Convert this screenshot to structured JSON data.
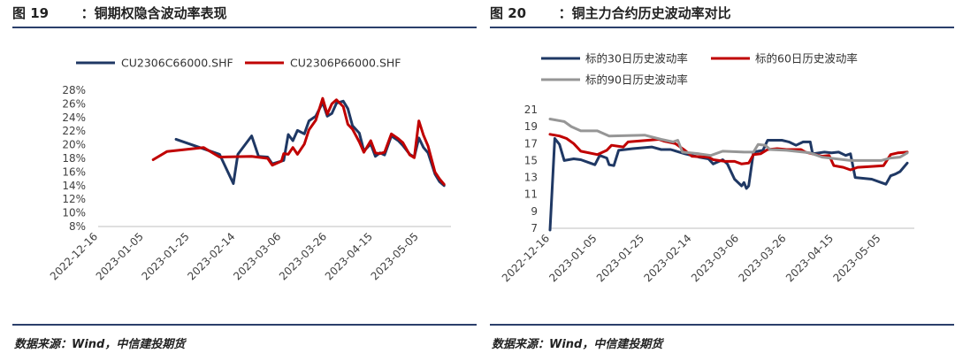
{
  "figures": [
    {
      "title": "图 19       ：铜期权隐含波动率表现",
      "source": "数据来源：Wind，中信建投期货",
      "chart_data": {
        "type": "line",
        "title": "",
        "xlabel": "",
        "ylabel": "",
        "x_start": "2022-12-16",
        "x_end": "2023-05-19",
        "x_ticks": [
          "2022-12-16",
          "2023-01-05",
          "2023-01-25",
          "2023-02-14",
          "2023-03-06",
          "2023-03-26",
          "2023-04-15",
          "2023-05-05"
        ],
        "ylim": [
          8,
          28
        ],
        "y_step": 2,
        "y_format": "percent",
        "grid": false,
        "legend": "top",
        "series": [
          {
            "name": "CU2306C66000.SHF",
            "color": "#1f3864",
            "points": [
              [
                "2023-01-19",
                20.8
              ],
              [
                "2023-02-07",
                18.6
              ],
              [
                "2023-02-13",
                14.3
              ],
              [
                "2023-02-15",
                18.6
              ],
              [
                "2023-02-21",
                21.3
              ],
              [
                "2023-02-24",
                18.3
              ],
              [
                "2023-02-28",
                18.2
              ],
              [
                "2023-03-02",
                17.2
              ],
              [
                "2023-03-06",
                17.6
              ],
              [
                "2023-03-07",
                17.7
              ],
              [
                "2023-03-09",
                21.5
              ],
              [
                "2023-03-11",
                20.6
              ],
              [
                "2023-03-13",
                22.1
              ],
              [
                "2023-03-16",
                21.6
              ],
              [
                "2023-03-18",
                23.5
              ],
              [
                "2023-03-21",
                24.2
              ],
              [
                "2023-03-24",
                26.2
              ],
              [
                "2023-03-26",
                24.2
              ],
              [
                "2023-03-28",
                24.6
              ],
              [
                "2023-03-30",
                26.1
              ],
              [
                "2023-04-02",
                26.4
              ],
              [
                "2023-04-04",
                25.3
              ],
              [
                "2023-04-06",
                22.8
              ],
              [
                "2023-04-09",
                21.7
              ],
              [
                "2023-04-11",
                19.1
              ],
              [
                "2023-04-14",
                20.1
              ],
              [
                "2023-04-16",
                18.3
              ],
              [
                "2023-04-18",
                18.8
              ],
              [
                "2023-04-20",
                18.5
              ],
              [
                "2023-04-23",
                21.3
              ],
              [
                "2023-04-26",
                20.6
              ],
              [
                "2023-04-28",
                19.9
              ],
              [
                "2023-05-01",
                18.6
              ],
              [
                "2023-05-03",
                18.2
              ],
              [
                "2023-05-05",
                21.0
              ],
              [
                "2023-05-07",
                19.6
              ],
              [
                "2023-05-09",
                18.8
              ],
              [
                "2023-05-12",
                15.7
              ],
              [
                "2023-05-14",
                14.6
              ],
              [
                "2023-05-16",
                14.0
              ]
            ]
          },
          {
            "name": "CU2306P66000.SHF",
            "color": "#c00000",
            "points": [
              [
                "2023-01-09",
                17.8
              ],
              [
                "2023-01-15",
                19.0
              ],
              [
                "2023-01-31",
                19.6
              ],
              [
                "2023-02-07",
                18.2
              ],
              [
                "2023-02-21",
                18.3
              ],
              [
                "2023-02-28",
                18.0
              ],
              [
                "2023-03-02",
                17.0
              ],
              [
                "2023-03-06",
                17.6
              ],
              [
                "2023-03-07",
                18.7
              ],
              [
                "2023-03-09",
                18.6
              ],
              [
                "2023-03-11",
                19.6
              ],
              [
                "2023-03-13",
                18.6
              ],
              [
                "2023-03-16",
                20.1
              ],
              [
                "2023-03-18",
                22.2
              ],
              [
                "2023-03-21",
                23.6
              ],
              [
                "2023-03-24",
                26.8
              ],
              [
                "2023-03-26",
                24.5
              ],
              [
                "2023-03-28",
                26.0
              ],
              [
                "2023-03-30",
                26.6
              ],
              [
                "2023-04-02",
                25.6
              ],
              [
                "2023-04-04",
                23.0
              ],
              [
                "2023-04-06",
                22.3
              ],
              [
                "2023-04-09",
                20.4
              ],
              [
                "2023-04-11",
                18.9
              ],
              [
                "2023-04-14",
                20.6
              ],
              [
                "2023-04-16",
                18.8
              ],
              [
                "2023-04-18",
                18.7
              ],
              [
                "2023-04-20",
                18.9
              ],
              [
                "2023-04-23",
                21.6
              ],
              [
                "2023-04-26",
                20.9
              ],
              [
                "2023-04-28",
                20.3
              ],
              [
                "2023-05-01",
                18.5
              ],
              [
                "2023-05-03",
                18.1
              ],
              [
                "2023-05-05",
                23.5
              ],
              [
                "2023-05-07",
                21.4
              ],
              [
                "2023-05-09",
                19.8
              ],
              [
                "2023-05-12",
                16.0
              ],
              [
                "2023-05-14",
                15.0
              ],
              [
                "2023-05-16",
                14.2
              ]
            ]
          }
        ]
      }
    },
    {
      "title": "图 20       ：铜主力合约历史波动率对比",
      "source": "数据来源：Wind，中信建投期货",
      "chart_data": {
        "type": "line",
        "title": "",
        "xlabel": "",
        "ylabel": "",
        "x_start": "2022-12-16",
        "x_end": "2023-05-19",
        "x_ticks": [
          "2022-12-16",
          "2023-01-05",
          "2023-01-25",
          "2023-02-14",
          "2023-03-06",
          "2023-03-26",
          "2023-04-15",
          "2023-05-05"
        ],
        "ylim": [
          7,
          21
        ],
        "y_step": 2,
        "y_format": "number",
        "grid": false,
        "legend": "top",
        "series": [
          {
            "name": "标的30日历史波动率",
            "color": "#1f3864",
            "points": [
              [
                "2022-12-16",
                6.8
              ],
              [
                "2022-12-18",
                17.6
              ],
              [
                "2022-12-20",
                16.9
              ],
              [
                "2022-12-22",
                15.0
              ],
              [
                "2022-12-26",
                15.2
              ],
              [
                "2022-12-29",
                15.1
              ],
              [
                "2023-01-02",
                14.7
              ],
              [
                "2023-01-04",
                14.5
              ],
              [
                "2023-01-06",
                15.6
              ],
              [
                "2023-01-09",
                15.3
              ],
              [
                "2023-01-10",
                14.5
              ],
              [
                "2023-01-12",
                14.4
              ],
              [
                "2023-01-14",
                16.2
              ],
              [
                "2023-01-20",
                16.4
              ],
              [
                "2023-01-28",
                16.6
              ],
              [
                "2023-02-01",
                16.3
              ],
              [
                "2023-02-05",
                16.3
              ],
              [
                "2023-02-11",
                15.8
              ],
              [
                "2023-02-17",
                15.4
              ],
              [
                "2023-02-21",
                15.2
              ],
              [
                "2023-02-23",
                14.6
              ],
              [
                "2023-02-27",
                15.1
              ],
              [
                "2023-03-01",
                14.6
              ],
              [
                "2023-03-04",
                12.8
              ],
              [
                "2023-03-07",
                12.0
              ],
              [
                "2023-03-08",
                12.4
              ],
              [
                "2023-03-09",
                11.7
              ],
              [
                "2023-03-10",
                12.0
              ],
              [
                "2023-03-12",
                16.0
              ],
              [
                "2023-03-16",
                16.2
              ],
              [
                "2023-03-18",
                17.4
              ],
              [
                "2023-03-24",
                17.4
              ],
              [
                "2023-03-27",
                17.2
              ],
              [
                "2023-03-30",
                16.8
              ],
              [
                "2023-04-02",
                17.2
              ],
              [
                "2023-04-05",
                17.2
              ],
              [
                "2023-04-06",
                15.8
              ],
              [
                "2023-04-11",
                16.0
              ],
              [
                "2023-04-14",
                15.9
              ],
              [
                "2023-04-17",
                16.0
              ],
              [
                "2023-04-20",
                15.6
              ],
              [
                "2023-04-22",
                15.8
              ],
              [
                "2023-04-24",
                13.0
              ],
              [
                "2023-05-01",
                12.8
              ],
              [
                "2023-05-05",
                12.4
              ],
              [
                "2023-05-07",
                12.2
              ],
              [
                "2023-05-09",
                13.2
              ],
              [
                "2023-05-11",
                13.4
              ],
              [
                "2023-05-13",
                13.7
              ],
              [
                "2023-05-16",
                14.7
              ]
            ]
          },
          {
            "name": "标的60日历史波动率",
            "color": "#c00000",
            "points": [
              [
                "2022-12-16",
                18.1
              ],
              [
                "2022-12-20",
                17.9
              ],
              [
                "2022-12-23",
                17.6
              ],
              [
                "2022-12-26",
                17.0
              ],
              [
                "2022-12-29",
                16.1
              ],
              [
                "2023-01-05",
                15.7
              ],
              [
                "2023-01-09",
                16.2
              ],
              [
                "2023-01-11",
                16.8
              ],
              [
                "2023-01-16",
                16.6
              ],
              [
                "2023-01-18",
                17.2
              ],
              [
                "2023-01-31",
                17.5
              ],
              [
                "2023-02-02",
                17.3
              ],
              [
                "2023-02-07",
                17.0
              ],
              [
                "2023-02-11",
                16.2
              ],
              [
                "2023-02-14",
                15.5
              ],
              [
                "2023-02-21",
                15.4
              ],
              [
                "2023-02-23",
                15.1
              ],
              [
                "2023-02-28",
                14.9
              ],
              [
                "2023-03-04",
                14.9
              ],
              [
                "2023-03-07",
                14.6
              ],
              [
                "2023-03-10",
                14.7
              ],
              [
                "2023-03-12",
                15.7
              ],
              [
                "2023-03-15",
                15.8
              ],
              [
                "2023-03-18",
                16.3
              ],
              [
                "2023-03-22",
                16.4
              ],
              [
                "2023-03-26",
                16.3
              ],
              [
                "2023-04-01",
                16.3
              ],
              [
                "2023-04-03",
                16.0
              ],
              [
                "2023-04-10",
                15.5
              ],
              [
                "2023-04-13",
                15.6
              ],
              [
                "2023-04-15",
                14.4
              ],
              [
                "2023-04-19",
                14.2
              ],
              [
                "2023-04-22",
                13.9
              ],
              [
                "2023-04-25",
                14.2
              ],
              [
                "2023-05-01",
                14.3
              ],
              [
                "2023-05-06",
                14.4
              ],
              [
                "2023-05-09",
                15.7
              ],
              [
                "2023-05-12",
                15.9
              ],
              [
                "2023-05-16",
                16.0
              ]
            ]
          },
          {
            "name": "标的90日历史波动率",
            "color": "#969696",
            "points": [
              [
                "2022-12-16",
                19.9
              ],
              [
                "2022-12-22",
                19.6
              ],
              [
                "2022-12-25",
                19.0
              ],
              [
                "2022-12-29",
                18.5
              ],
              [
                "2023-01-05",
                18.5
              ],
              [
                "2023-01-10",
                17.9
              ],
              [
                "2023-01-25",
                18.0
              ],
              [
                "2023-02-01",
                17.5
              ],
              [
                "2023-02-06",
                17.2
              ],
              [
                "2023-02-08",
                17.4
              ],
              [
                "2023-02-10",
                16.0
              ],
              [
                "2023-02-17",
                15.8
              ],
              [
                "2023-02-22",
                15.6
              ],
              [
                "2023-02-27",
                16.1
              ],
              [
                "2023-03-08",
                16.0
              ],
              [
                "2023-03-12",
                16.0
              ],
              [
                "2023-03-14",
                16.9
              ],
              [
                "2023-03-17",
                16.8
              ],
              [
                "2023-03-19",
                16.3
              ],
              [
                "2023-03-26",
                16.2
              ],
              [
                "2023-04-05",
                15.9
              ],
              [
                "2023-04-10",
                15.4
              ],
              [
                "2023-04-16",
                15.2
              ],
              [
                "2023-04-22",
                15.0
              ],
              [
                "2023-04-28",
                15.0
              ],
              [
                "2023-05-05",
                15.0
              ],
              [
                "2023-05-09",
                15.3
              ],
              [
                "2023-05-13",
                15.4
              ],
              [
                "2023-05-16",
                15.9
              ]
            ]
          }
        ]
      }
    }
  ]
}
